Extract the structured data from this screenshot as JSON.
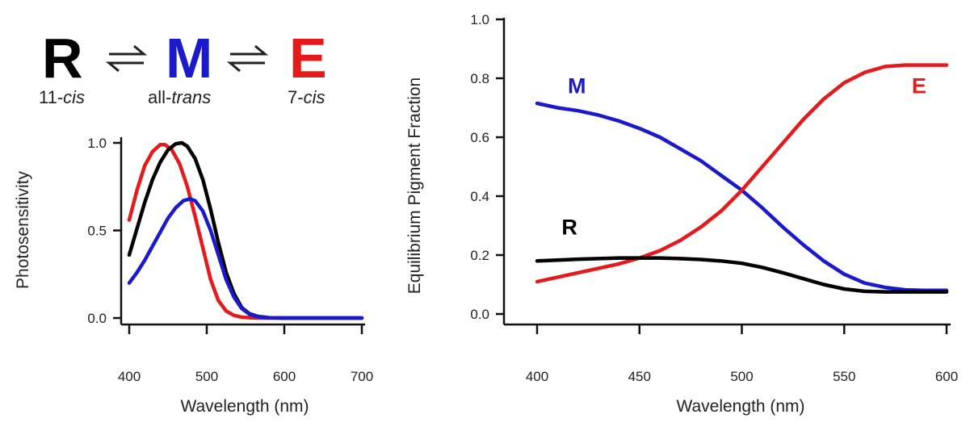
{
  "scheme": {
    "species": [
      {
        "letter": "R",
        "color": "#000000",
        "label_main": "11-",
        "label_italic": "cis",
        "label_prefix_italic": false
      },
      {
        "letter": "M",
        "color": "#1a1acc",
        "label_main": "all-",
        "label_italic": "trans",
        "label_prefix_italic": false
      },
      {
        "letter": "E",
        "color": "#e41a1c",
        "label_main": "7-",
        "label_italic": "cis",
        "label_prefix_italic": false
      }
    ]
  },
  "chart_data": [
    {
      "type": "line",
      "xlabel": "Wavelength (nm)",
      "ylabel": "Photosensitivity",
      "xlim": [
        400,
        700
      ],
      "ylim": [
        0,
        1.0
      ],
      "xticks": [
        "400",
        "500",
        "600",
        "700"
      ],
      "yticks": [
        "0.0",
        "0.5",
        "1.0"
      ],
      "series": [
        {
          "color": "#e41a1c",
          "x": [
            400,
            410,
            420,
            430,
            440,
            446,
            455,
            465,
            475,
            485,
            495,
            505,
            515,
            525,
            535,
            545,
            555,
            565,
            580,
            600,
            650,
            700
          ],
          "y": [
            0.56,
            0.73,
            0.87,
            0.95,
            0.99,
            0.99,
            0.96,
            0.88,
            0.75,
            0.58,
            0.4,
            0.22,
            0.1,
            0.04,
            0.015,
            0.005,
            0.002,
            0.0,
            0.0,
            0.0,
            0.0,
            0.0
          ]
        },
        {
          "color": "#000000",
          "x": [
            400,
            410,
            420,
            430,
            440,
            450,
            460,
            468,
            475,
            485,
            495,
            505,
            515,
            525,
            535,
            545,
            555,
            565,
            580,
            600,
            650,
            700
          ],
          "y": [
            0.36,
            0.51,
            0.66,
            0.79,
            0.89,
            0.96,
            0.995,
            1.0,
            0.98,
            0.91,
            0.79,
            0.62,
            0.43,
            0.26,
            0.14,
            0.06,
            0.025,
            0.01,
            0.002,
            0.0,
            0.0,
            0.0
          ]
        },
        {
          "color": "#1a1acc",
          "x": [
            400,
            410,
            420,
            430,
            440,
            450,
            460,
            470,
            478,
            485,
            495,
            505,
            515,
            525,
            535,
            545,
            555,
            565,
            580,
            600,
            650,
            700
          ],
          "y": [
            0.2,
            0.26,
            0.33,
            0.41,
            0.49,
            0.57,
            0.63,
            0.67,
            0.68,
            0.67,
            0.61,
            0.5,
            0.36,
            0.22,
            0.12,
            0.055,
            0.022,
            0.008,
            0.002,
            0.0,
            0.0,
            0.0
          ]
        }
      ]
    },
    {
      "type": "line",
      "xlabel": "Wavelength (nm)",
      "ylabel": "Equilibrium Pigment Fraction",
      "xlim": [
        400,
        600
      ],
      "ylim": [
        0,
        1.0
      ],
      "xticks": [
        "400",
        "450",
        "500",
        "550",
        "600"
      ],
      "yticks": [
        "0.0",
        "0.2",
        "0.4",
        "0.6",
        "0.8",
        "1.0"
      ],
      "series": [
        {
          "name": "M",
          "color": "#1a1acc",
          "label_at": [
            415,
            0.75
          ],
          "x": [
            400,
            410,
            420,
            430,
            440,
            450,
            460,
            470,
            480,
            490,
            500,
            510,
            520,
            530,
            540,
            550,
            560,
            570,
            580,
            590,
            600
          ],
          "y": [
            0.715,
            0.7,
            0.69,
            0.675,
            0.655,
            0.63,
            0.6,
            0.56,
            0.52,
            0.47,
            0.42,
            0.36,
            0.295,
            0.235,
            0.18,
            0.135,
            0.105,
            0.09,
            0.082,
            0.08,
            0.08
          ]
        },
        {
          "name": "E",
          "color": "#e41a1c",
          "label_at": [
            583,
            0.75
          ],
          "x": [
            400,
            410,
            420,
            430,
            440,
            450,
            460,
            470,
            480,
            490,
            500,
            510,
            520,
            530,
            540,
            550,
            560,
            570,
            580,
            590,
            600
          ],
          "y": [
            0.11,
            0.125,
            0.14,
            0.155,
            0.17,
            0.19,
            0.215,
            0.25,
            0.295,
            0.35,
            0.42,
            0.5,
            0.58,
            0.66,
            0.73,
            0.785,
            0.82,
            0.84,
            0.845,
            0.845,
            0.845
          ]
        },
        {
          "name": "R",
          "color": "#000000",
          "label_at": [
            412,
            0.27
          ],
          "x": [
            400,
            410,
            420,
            430,
            440,
            450,
            460,
            470,
            480,
            490,
            500,
            510,
            520,
            530,
            540,
            550,
            560,
            570,
            580,
            590,
            600
          ],
          "y": [
            0.18,
            0.183,
            0.186,
            0.188,
            0.19,
            0.19,
            0.19,
            0.188,
            0.185,
            0.18,
            0.172,
            0.158,
            0.14,
            0.12,
            0.1,
            0.085,
            0.077,
            0.075,
            0.075,
            0.075,
            0.075
          ]
        }
      ]
    }
  ]
}
